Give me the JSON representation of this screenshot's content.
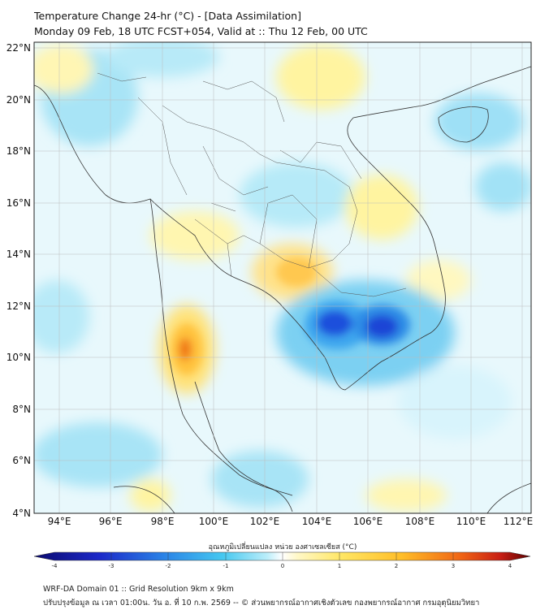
{
  "title": {
    "line1": "Temperature Change 24-hr (°C) - [Data Assimilation]",
    "line2": "Monday 09 Feb, 18 UTC FCST+054, Valid at :: Thu 12 Feb, 00 UTC"
  },
  "map": {
    "lon_ticks": [
      "94°E",
      "96°E",
      "98°E",
      "100°E",
      "102°E",
      "104°E",
      "106°E",
      "108°E",
      "110°E",
      "112°E"
    ],
    "lat_ticks": [
      "22°N",
      "20°N",
      "18°N",
      "16°N",
      "14°N",
      "12°N",
      "10°N",
      "8°N",
      "6°N",
      "4°N"
    ],
    "lon_range": [
      93,
      112.3
    ],
    "lat_range": [
      4,
      22.2
    ],
    "gridlines": true
  },
  "colorbar": {
    "title": "อุณหภูมิเปลี่ยนแปลง หน่วย องศาเซลเซียส (°C)",
    "ticks": [
      "-4",
      "-3",
      "-2",
      "-1",
      "0",
      "1",
      "2",
      "3",
      "4"
    ],
    "range": [
      -4,
      4
    ],
    "colors": {
      "cold_extreme": "#0a0a6e",
      "cold_strong": "#1436d6",
      "cold_mid": "#3cb4f0",
      "cool": "#aee6fa",
      "neutral": "#ffffff",
      "warm": "#fff4a0",
      "warm_mid": "#ffd23c",
      "hot": "#f07814",
      "hot_extreme": "#5a0000"
    }
  },
  "footer": {
    "line1": "WRF-DA Domain 01 :: Grid Resolution 9km x 9km",
    "line2": "ปรับปรุงข้อมูล ณ เวลา 01:00น. วัน อ. ที่ 10 ก.พ. 2569 -- © ส่วนพยากรณ์อากาศเชิงตัวเลข กองพยากรณ์อากาศ กรมอุตุนิยมวิทยา"
  }
}
